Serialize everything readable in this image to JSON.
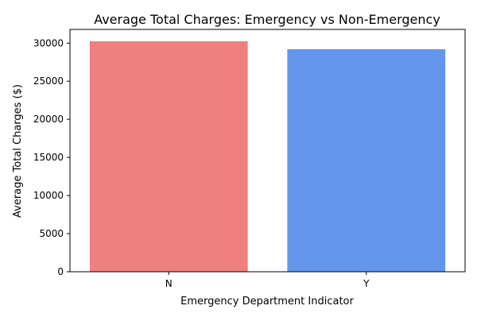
{
  "chart_data": {
    "type": "bar",
    "title": "Average Total Charges: Emergency vs Non-Emergency",
    "xlabel": "Emergency Department Indicator",
    "ylabel": "Average Total Charges ($)",
    "categories": [
      "N",
      "Y"
    ],
    "values": [
      30250,
      29200
    ],
    "colors": [
      "#F08080",
      "#6495ED"
    ],
    "ylim": [
      0,
      31800
    ],
    "yticks": [
      0,
      5000,
      10000,
      15000,
      20000,
      25000,
      30000
    ],
    "ytick_labels": [
      "0",
      "5000",
      "10000",
      "15000",
      "20000",
      "25000",
      "30000"
    ],
    "grid": false,
    "legend": "none"
  }
}
